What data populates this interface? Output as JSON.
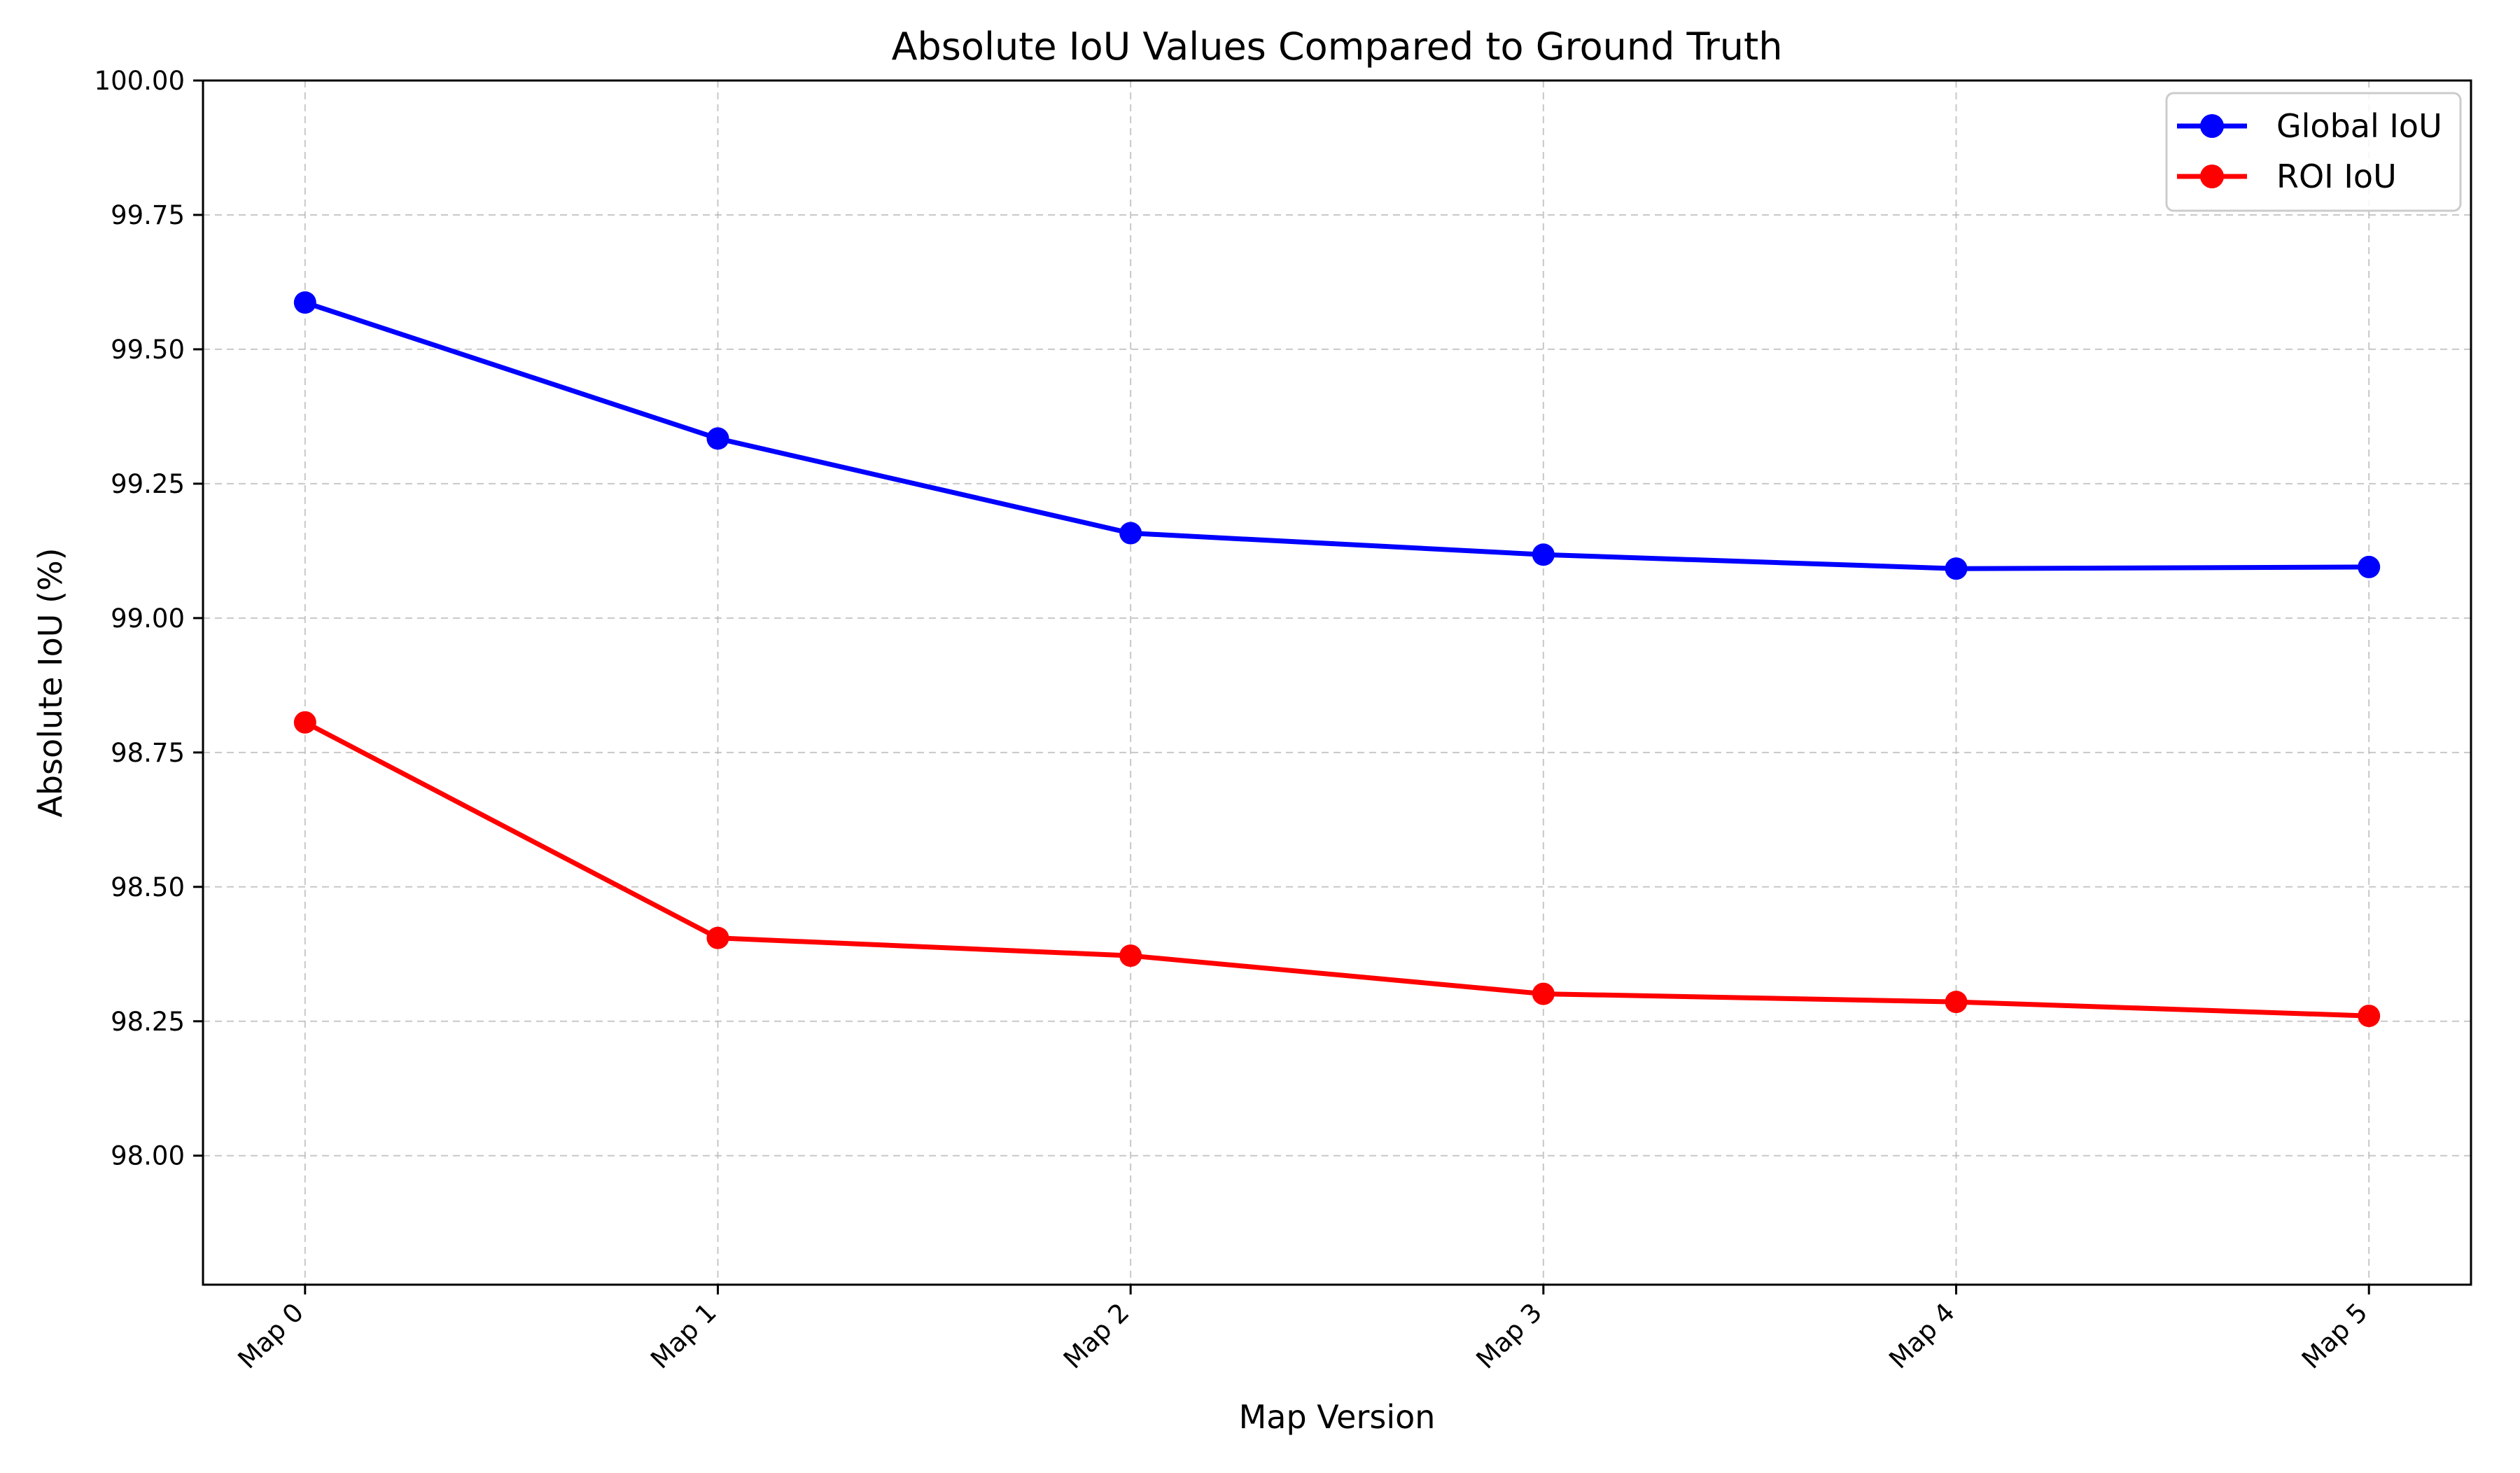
{
  "chart_data": {
    "type": "line",
    "title": "Absolute IoU Values Compared to Ground Truth",
    "xlabel": "Map Version",
    "ylabel": "Absolute IoU (%)",
    "categories": [
      "Map 0",
      "Map 1",
      "Map 2",
      "Map 3",
      "Map 4",
      "Map 5"
    ],
    "ylim": [
      97.76,
      100.0
    ],
    "yticks": [
      "98.00",
      "98.25",
      "98.50",
      "98.75",
      "99.00",
      "99.25",
      "99.50",
      "99.75",
      "100.00"
    ],
    "grid": true,
    "legend_position": "top-right",
    "series": [
      {
        "name": "Global IoU",
        "color": "#0000ff",
        "values": [
          99.587,
          99.334,
          99.158,
          99.118,
          99.092,
          99.095
        ]
      },
      {
        "name": "ROI IoU",
        "color": "#ff0000",
        "values": [
          98.806,
          98.405,
          98.372,
          98.301,
          98.286,
          98.26
        ]
      }
    ]
  }
}
